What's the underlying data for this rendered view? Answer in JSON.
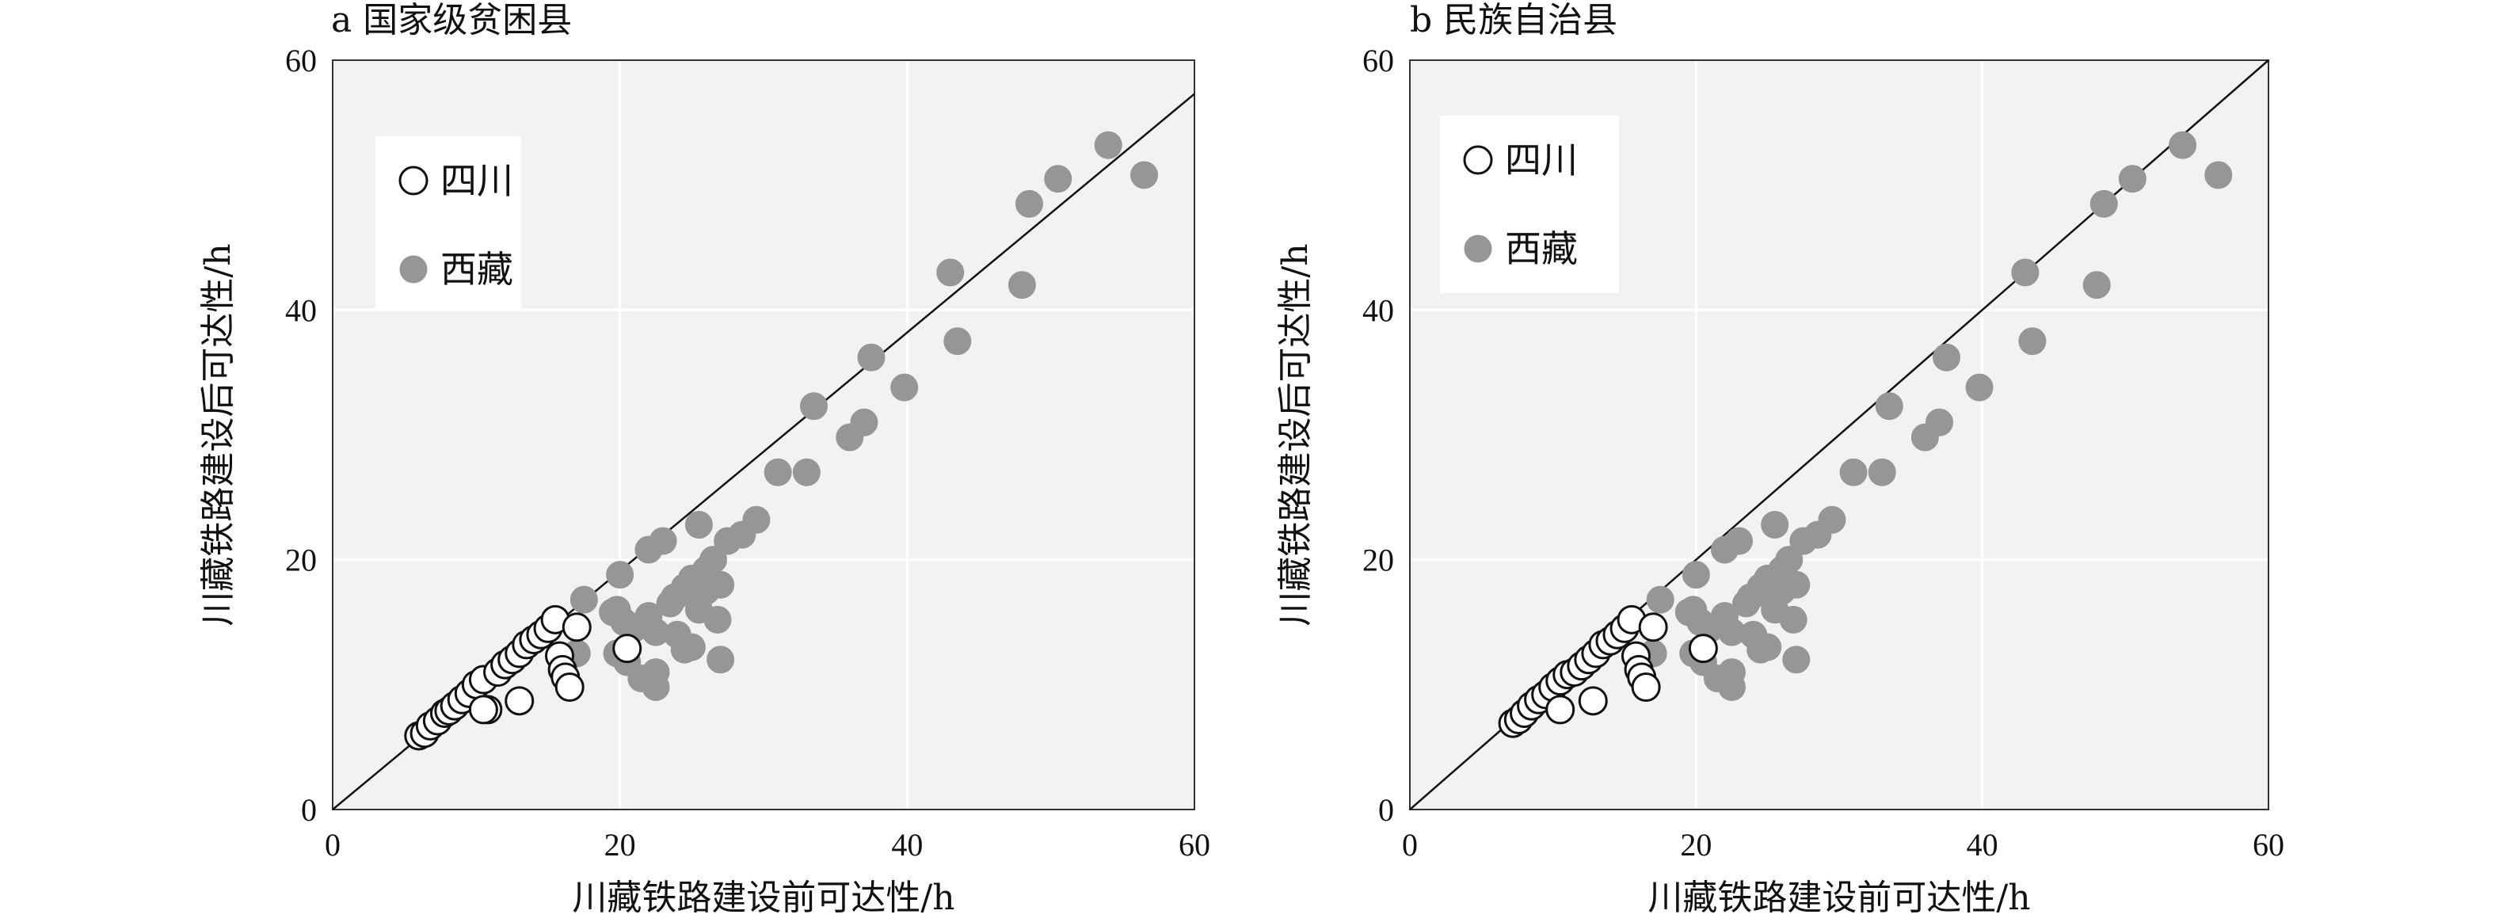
{
  "chart_data": [
    {
      "type": "scatter",
      "title": "a 国家级贫困县",
      "xlabel": "川藏铁路建设前可达性/h",
      "ylabel": "川藏铁路建设后可达性/h",
      "xlim": [
        0,
        60
      ],
      "ylim": [
        0,
        60
      ],
      "xticks": [
        "0",
        "20",
        "40",
        "60"
      ],
      "yticks": [
        "0",
        "20",
        "40",
        "60"
      ],
      "grid": true,
      "reference_line": "y = 0.955x",
      "legend_position": "top-left",
      "series": [
        {
          "name": "四川",
          "marker": "open-circle",
          "x": [
            6.0,
            6.4,
            6.8,
            7.3,
            7.8,
            8.1,
            8.5,
            9.0,
            9.5,
            10.0,
            10.5,
            10.8,
            11.5,
            12.0,
            12.5,
            13.0,
            13.5,
            14.0,
            14.5,
            15.0,
            15.5,
            15.8,
            16.0,
            16.2,
            16.5,
            17.0,
            13.0,
            10.5,
            20.5
          ],
          "y": [
            5.9,
            6.1,
            6.7,
            7.1,
            7.7,
            7.9,
            8.3,
            8.8,
            9.3,
            10.0,
            10.4,
            8.0,
            11.0,
            11.6,
            12.0,
            12.5,
            13.2,
            13.6,
            14.0,
            14.5,
            15.2,
            12.3,
            11.2,
            10.6,
            9.8,
            14.6,
            8.7,
            8.0,
            12.9
          ]
        },
        {
          "name": "西藏",
          "marker": "filled-circle",
          "x": [
            17.0,
            17.5,
            19.5,
            19.8,
            20.0,
            20.3,
            20.5,
            21.0,
            21.5,
            22.0,
            22.0,
            22.5,
            22.5,
            23.0,
            23.5,
            24.0,
            24.5,
            25.0,
            25.0,
            25.5,
            25.5,
            26.0,
            26.5,
            27.0,
            27.0,
            27.5,
            28.5,
            29.5,
            31.0,
            33.0,
            33.5,
            36.0,
            37.0,
            37.5,
            39.8,
            43.0,
            43.5,
            48.0,
            48.5,
            50.5,
            54.0,
            56.5,
            26.8,
            19.8,
            22.5,
            24.5,
            23.8,
            26.0
          ],
          "y": [
            12.5,
            16.8,
            15.8,
            12.5,
            18.8,
            15.0,
            11.8,
            14.5,
            10.5,
            15.5,
            20.8,
            11.0,
            9.8,
            21.5,
            16.5,
            14.0,
            17.8,
            13.0,
            18.5,
            22.8,
            16.0,
            19.2,
            20.0,
            18.0,
            12.0,
            21.5,
            22.0,
            23.2,
            27.0,
            27.0,
            32.3,
            29.8,
            31.0,
            36.2,
            33.8,
            43.0,
            37.5,
            42.0,
            48.5,
            50.5,
            53.2,
            50.8,
            15.2,
            16.0,
            14.2,
            12.8,
            17.0,
            17.5
          ]
        }
      ]
    },
    {
      "type": "scatter",
      "title": "b 民族自治县",
      "xlabel": "川藏铁路建设前可达性/h",
      "ylabel": "川藏铁路建设后可达性/h",
      "xlim": [
        0,
        60
      ],
      "ylim": [
        0,
        60
      ],
      "xticks": [
        "0",
        "20",
        "40",
        "60"
      ],
      "yticks": [
        "0",
        "20",
        "40",
        "60"
      ],
      "grid": true,
      "reference_line": "y = x",
      "legend_position": "top-left",
      "series": [
        {
          "name": "四川",
          "marker": "open-circle",
          "x": [
            7.2,
            7.6,
            8.0,
            8.5,
            9.0,
            9.5,
            10.0,
            10.5,
            11.0,
            11.5,
            12.0,
            12.5,
            13.0,
            13.5,
            14.0,
            14.5,
            15.0,
            15.5,
            15.8,
            16.0,
            16.2,
            16.5,
            17.0,
            12.8,
            10.5,
            20.5
          ],
          "y": [
            6.9,
            7.2,
            7.7,
            8.3,
            8.8,
            9.2,
            9.8,
            10.3,
            10.8,
            11.0,
            11.5,
            12.0,
            12.5,
            13.2,
            13.5,
            14.0,
            14.5,
            15.2,
            12.3,
            11.2,
            10.6,
            9.8,
            14.6,
            8.7,
            8.0,
            12.9
          ]
        },
        {
          "name": "西藏",
          "marker": "filled-circle",
          "x": [
            17.0,
            17.5,
            19.5,
            19.8,
            20.0,
            20.3,
            20.5,
            21.0,
            21.5,
            22.0,
            22.0,
            22.5,
            22.5,
            23.0,
            23.5,
            24.0,
            24.5,
            25.0,
            25.0,
            25.5,
            25.5,
            26.0,
            26.5,
            27.0,
            27.0,
            27.5,
            28.5,
            29.5,
            31.0,
            33.0,
            33.5,
            36.0,
            37.0,
            37.5,
            39.8,
            43.0,
            43.5,
            48.0,
            48.5,
            50.5,
            54.0,
            56.5,
            26.8,
            19.8,
            22.5,
            24.5,
            23.8,
            26.0
          ],
          "y": [
            12.5,
            16.8,
            15.8,
            12.5,
            18.8,
            15.0,
            11.8,
            14.5,
            10.5,
            15.5,
            20.8,
            11.0,
            9.8,
            21.5,
            16.5,
            14.0,
            17.8,
            13.0,
            18.5,
            22.8,
            16.0,
            19.2,
            20.0,
            18.0,
            12.0,
            21.5,
            22.0,
            23.2,
            27.0,
            27.0,
            32.3,
            29.8,
            31.0,
            36.2,
            33.8,
            43.0,
            37.5,
            42.0,
            48.5,
            50.5,
            53.2,
            50.8,
            15.2,
            16.0,
            14.2,
            12.8,
            17.0,
            17.5
          ]
        }
      ]
    }
  ]
}
